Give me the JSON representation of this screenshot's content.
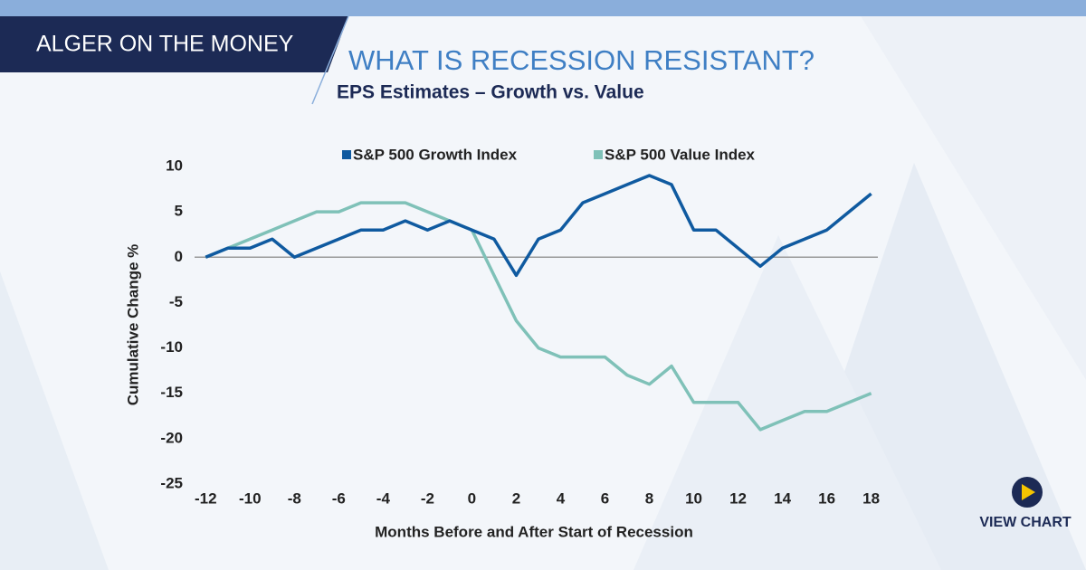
{
  "header": {
    "brand": "ALGER ON THE MONEY"
  },
  "button": {
    "label": "VIEW CHART"
  },
  "chart_data": {
    "type": "line",
    "title": "WHAT IS RECESSION RESISTANT?",
    "subtitle": "EPS Estimates – Growth vs. Value",
    "x_label": "Months Before and After Start of Recession",
    "y_label": "Cumulative Change %",
    "x": [
      -12,
      -11,
      -10,
      -9,
      -8,
      -7,
      -6,
      -5,
      -4,
      -3,
      -2,
      -1,
      0,
      1,
      2,
      3,
      4,
      5,
      6,
      7,
      8,
      9,
      10,
      11,
      12,
      13,
      14,
      15,
      16,
      17,
      18
    ],
    "series": [
      {
        "name": "S&P 500 Growth Index",
        "color": "#0f5aa0",
        "values": [
          0,
          1,
          1,
          2,
          0,
          1,
          2,
          3,
          3,
          4,
          3,
          4,
          3,
          2,
          -2,
          2,
          3,
          6,
          7,
          8,
          9,
          8,
          3,
          3,
          1,
          -1,
          1,
          2,
          3,
          5,
          7
        ]
      },
      {
        "name": "S&P 500 Value Index",
        "color": "#7fc1b8",
        "values": [
          0,
          1,
          2,
          3,
          4,
          5,
          5,
          6,
          6,
          6,
          5,
          4,
          3,
          -2,
          -7,
          -10,
          -11,
          -11,
          -11,
          -13,
          -14,
          -12,
          -16,
          -16,
          -16,
          -19,
          -18,
          -17,
          -17,
          -16,
          -15
        ]
      }
    ],
    "xlim": [
      -12.5,
      18.3
    ],
    "xticks": [
      -12,
      -10,
      -8,
      -6,
      -4,
      -2,
      0,
      2,
      4,
      6,
      8,
      10,
      12,
      14,
      16,
      18
    ],
    "ylim": [
      -25,
      10
    ],
    "yticks": [
      -25,
      -20,
      -15,
      -10,
      -5,
      0,
      5,
      10
    ],
    "zero_line": true,
    "legend": "top"
  }
}
